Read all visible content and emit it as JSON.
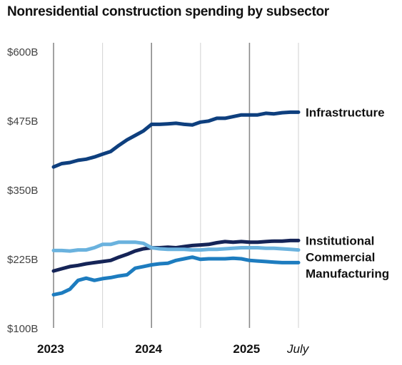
{
  "chart_data": {
    "type": "line",
    "title": "Nonresidential construction spending by subsector",
    "xlabel": "",
    "ylabel": "",
    "ylim": [
      100,
      600
    ],
    "yticks": [
      100,
      225,
      350,
      475,
      600
    ],
    "ytick_labels": [
      "$100B",
      "$225B",
      "$350B",
      "$475B",
      "$600B"
    ],
    "x_tick_labels": [
      {
        "label": "2023",
        "index": 0
      },
      {
        "label": "2024",
        "index": 12
      },
      {
        "label": "2025",
        "index": 24
      },
      {
        "label": "July",
        "index": 30
      }
    ],
    "x_count": 31,
    "grid": "vertical",
    "legend": "inline-right",
    "series": [
      {
        "name": "Infrastructure",
        "color": "#0e3f7e",
        "values": [
          391,
          397,
          399,
          403,
          405,
          409,
          414,
          419,
          430,
          440,
          448,
          456,
          468,
          468,
          469,
          470,
          468,
          467,
          472,
          474,
          479,
          479,
          482,
          485,
          485,
          485,
          488,
          487,
          489,
          490,
          490
        ]
      },
      {
        "name": "Institutional",
        "color": "#152457",
        "values": [
          203,
          207,
          211,
          213,
          216,
          218,
          220,
          222,
          228,
          233,
          239,
          243,
          245,
          245,
          246,
          245,
          247,
          249,
          250,
          251,
          254,
          256,
          255,
          256,
          255,
          255,
          256,
          257,
          257,
          258,
          258
        ]
      },
      {
        "name": "Commercial",
        "color": "#6ab2de",
        "values": [
          240,
          240,
          239,
          241,
          241,
          245,
          251,
          251,
          255,
          255,
          255,
          253,
          245,
          243,
          242,
          242,
          242,
          241,
          241,
          242,
          242,
          243,
          244,
          245,
          245,
          245,
          244,
          244,
          243,
          242,
          241
        ]
      },
      {
        "name": "Manufacturing",
        "color": "#1d7cbf",
        "values": [
          160,
          163,
          170,
          186,
          190,
          186,
          189,
          191,
          194,
          196,
          208,
          211,
          214,
          216,
          217,
          222,
          225,
          228,
          224,
          225,
          225,
          225,
          226,
          225,
          222,
          221,
          220,
          219,
          218,
          218,
          218
        ]
      }
    ]
  }
}
